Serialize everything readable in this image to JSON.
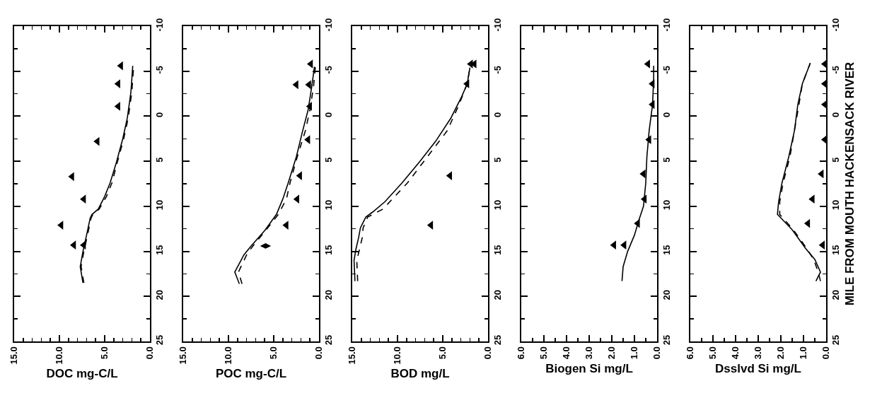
{
  "chart_data": [
    {
      "type": "line",
      "xlabel": "DOC mg-C/L",
      "ylim": [
        25,
        -10
      ],
      "xlim": [
        15,
        0
      ],
      "yticks": [
        25,
        {
          "value": 22.5,
          "label": null
        },
        20,
        {
          "value": 17.5,
          "label": null
        },
        15,
        {
          "value": 12.5,
          "label": null
        },
        10,
        {
          "value": 7.5,
          "label": null
        },
        5,
        {
          "value": 2.5,
          "label": null
        },
        0,
        {
          "value": -2.5,
          "label": null
        },
        -5,
        {
          "value": -7.5,
          "label": null
        },
        -10
      ],
      "xticks": [
        {
          "value": 0,
          "label": "0.0"
        },
        {
          "value": 1,
          "label": null
        },
        {
          "value": 2,
          "label": null
        },
        {
          "value": 3,
          "label": null
        },
        {
          "value": 4,
          "label": null
        },
        {
          "value": 5,
          "label": "5.0"
        },
        {
          "value": 6,
          "label": null
        },
        {
          "value": 7,
          "label": null
        },
        {
          "value": 8,
          "label": null
        },
        {
          "value": 9,
          "label": null
        },
        {
          "value": 10,
          "label": "10.0"
        },
        {
          "value": 11,
          "label": null
        },
        {
          "value": 12,
          "label": null
        },
        {
          "value": 13,
          "label": null
        },
        {
          "value": 14,
          "label": null
        },
        {
          "value": 15,
          "label": "15.0"
        }
      ],
      "series": [
        {
          "type": "line",
          "line_style": "solid",
          "color": "#000000",
          "values": [
            18.5,
            16.7,
            15.0,
            13.2,
            11.3,
            10.9,
            10.3,
            8.9,
            7.4,
            5.1,
            2.5,
            0.2,
            -2.7,
            -5.6
          ],
          "x": [
            7.4,
            7.7,
            7.4,
            7.0,
            6.6,
            6.4,
            5.7,
            5.0,
            4.4,
            3.7,
            3.0,
            2.5,
            2.1,
            1.9
          ]
        },
        {
          "type": "line",
          "line_style": "dashed",
          "color": "#000000",
          "values": [
            18.5,
            16.7,
            15.0,
            13.2,
            11.3,
            10.9,
            10.3,
            8.9,
            7.4,
            5.1,
            2.5,
            0.2,
            -2.7,
            -5.6
          ],
          "x": [
            7.3,
            7.6,
            7.3,
            6.9,
            6.5,
            6.3,
            5.6,
            4.8,
            4.2,
            3.6,
            2.9,
            2.4,
            2.0,
            1.8
          ]
        },
        {
          "type": "scatter",
          "marker": "triangle",
          "color": "#000000",
          "values": [
            14.3,
            14.3,
            12.1,
            9.2,
            6.7,
            2.8,
            -1.1,
            -3.6,
            -5.6
          ],
          "x": [
            8.4,
            7.3,
            9.8,
            7.3,
            8.6,
            5.8,
            3.5,
            3.5,
            3.2
          ]
        }
      ]
    },
    {
      "type": "line",
      "xlabel": "POC mg-C/L",
      "ylim": [
        25,
        -10
      ],
      "xlim": [
        15,
        0
      ],
      "yticks": [
        25,
        {
          "value": 22.5,
          "label": null
        },
        20,
        {
          "value": 17.5,
          "label": null
        },
        15,
        {
          "value": 12.5,
          "label": null
        },
        10,
        {
          "value": 7.5,
          "label": null
        },
        5,
        {
          "value": 2.5,
          "label": null
        },
        0,
        {
          "value": -2.5,
          "label": null
        },
        -5,
        {
          "value": -7.5,
          "label": null
        },
        -10
      ],
      "xticks": [
        {
          "value": 0,
          "label": "0.0"
        },
        {
          "value": 1,
          "label": null
        },
        {
          "value": 2,
          "label": null
        },
        {
          "value": 3,
          "label": null
        },
        {
          "value": 4,
          "label": null
        },
        {
          "value": 5,
          "label": "5.0"
        },
        {
          "value": 6,
          "label": null
        },
        {
          "value": 7,
          "label": null
        },
        {
          "value": 8,
          "label": null
        },
        {
          "value": 9,
          "label": null
        },
        {
          "value": 10,
          "label": "10.0"
        },
        {
          "value": 11,
          "label": null
        },
        {
          "value": 12,
          "label": null
        },
        {
          "value": 13,
          "label": null
        },
        {
          "value": 14,
          "label": null
        },
        {
          "value": 15,
          "label": "15.0"
        }
      ],
      "series": [
        {
          "type": "line",
          "line_style": "solid",
          "color": "#000000",
          "values": [
            18.6,
            17.3,
            15.4,
            14.4,
            12.7,
            10.9,
            9.2,
            7.4,
            4.5,
            1.6,
            -0.7,
            -3.3,
            -5.5
          ],
          "x": [
            8.8,
            9.3,
            8.3,
            7.5,
            6.0,
            4.7,
            4.0,
            3.4,
            2.5,
            1.8,
            1.2,
            0.8,
            0.5
          ]
        },
        {
          "type": "line",
          "line_style": "dashed",
          "color": "#000000",
          "values": [
            18.6,
            17.3,
            15.4,
            14.4,
            12.7,
            10.9,
            9.2,
            7.4,
            4.5,
            1.6,
            -0.7,
            -3.3,
            -5.5
          ],
          "x": [
            8.5,
            8.9,
            8.0,
            7.3,
            5.9,
            4.5,
            3.6,
            3.2,
            2.4,
            1.5,
            1.0,
            0.6,
            0.4
          ]
        },
        {
          "type": "scatter",
          "marker": "triangle",
          "color": "#000000",
          "values": [
            12.1,
            9.2,
            6.6,
            2.6,
            -1.1,
            -3.5,
            -3.5,
            -5.8
          ],
          "x": [
            3.6,
            2.4,
            2.1,
            1.2,
            1.0,
            1.1,
            2.5,
            0.9
          ]
        },
        {
          "type": "scatter",
          "marker": "diamond",
          "color": "#000000",
          "values": [
            14.4
          ],
          "x": [
            5.9
          ]
        }
      ]
    },
    {
      "type": "line",
      "xlabel": "BOD mg/L",
      "ylim": [
        25,
        -10
      ],
      "xlim": [
        15,
        0
      ],
      "yticks": [
        25,
        {
          "value": 22.5,
          "label": null
        },
        20,
        {
          "value": 17.5,
          "label": null
        },
        15,
        {
          "value": 12.5,
          "label": null
        },
        10,
        {
          "value": 7.5,
          "label": null
        },
        5,
        {
          "value": 2.5,
          "label": null
        },
        0,
        {
          "value": -2.5,
          "label": null
        },
        -5,
        {
          "value": -7.5,
          "label": null
        },
        -10
      ],
      "xticks": [
        {
          "value": 0,
          "label": "0.0"
        },
        {
          "value": 1,
          "label": null
        },
        {
          "value": 2,
          "label": null
        },
        {
          "value": 3,
          "label": null
        },
        {
          "value": 4,
          "label": null
        },
        {
          "value": 5,
          "label": "5.0"
        },
        {
          "value": 6,
          "label": null
        },
        {
          "value": 7,
          "label": null
        },
        {
          "value": 8,
          "label": null
        },
        {
          "value": 9,
          "label": null
        },
        {
          "value": 10,
          "label": "10.0"
        },
        {
          "value": 11,
          "label": null
        },
        {
          "value": 12,
          "label": null
        },
        {
          "value": 13,
          "label": null
        },
        {
          "value": 14,
          "label": null
        },
        {
          "value": 15,
          "label": "15.0"
        }
      ],
      "series": [
        {
          "type": "line",
          "line_style": "solid",
          "color": "#000000",
          "values": [
            18.3,
            16.0,
            14.8,
            13.5,
            12.4,
            11.2,
            10.6,
            9.5,
            7.4,
            5.1,
            2.8,
            0.2,
            -2.2,
            -3.6,
            -5.4
          ],
          "x": [
            14.7,
            14.8,
            14.6,
            14.3,
            14.1,
            13.5,
            12.7,
            11.4,
            9.5,
            7.6,
            5.8,
            4.1,
            2.9,
            2.3,
            2.0
          ]
        },
        {
          "type": "line",
          "line_style": "dashed",
          "color": "#000000",
          "values": [
            18.3,
            16.0,
            14.8,
            13.5,
            12.4,
            11.2,
            10.3,
            7.4,
            4.5,
            1.6,
            -1.3,
            -3.6,
            -5.4
          ],
          "x": [
            14.4,
            14.5,
            14.2,
            13.9,
            13.8,
            13.3,
            11.6,
            8.9,
            6.7,
            4.5,
            3.2,
            2.3,
            2.0
          ]
        },
        {
          "type": "scatter",
          "marker": "triangle",
          "color": "#000000",
          "values": [
            12.1,
            6.6,
            -3.6,
            -5.8,
            -5.8
          ],
          "x": [
            6.3,
            4.2,
            2.3,
            1.9,
            1.5
          ]
        }
      ]
    },
    {
      "type": "line",
      "xlabel": "Biogen Si mg/L",
      "ylim": [
        25,
        -10
      ],
      "xlim": [
        6,
        0
      ],
      "yticks": [
        25,
        {
          "value": 22.5,
          "label": null
        },
        20,
        {
          "value": 17.5,
          "label": null
        },
        15,
        {
          "value": 12.5,
          "label": null
        },
        10,
        {
          "value": 7.5,
          "label": null
        },
        5,
        {
          "value": 2.5,
          "label": null
        },
        0,
        {
          "value": -2.5,
          "label": null
        },
        -5,
        {
          "value": -7.5,
          "label": null
        },
        -10
      ],
      "xticks": [
        {
          "value": 0,
          "label": "0.0"
        },
        {
          "value": 0.5,
          "label": null
        },
        {
          "value": 1,
          "label": "1.0"
        },
        {
          "value": 1.5,
          "label": null
        },
        {
          "value": 2,
          "label": "2.0"
        },
        {
          "value": 2.5,
          "label": null
        },
        {
          "value": 3,
          "label": "3.0"
        },
        {
          "value": 3.5,
          "label": null
        },
        {
          "value": 4,
          "label": "4.0"
        },
        {
          "value": 4.5,
          "label": null
        },
        {
          "value": 5,
          "label": "5.0"
        },
        {
          "value": 5.5,
          "label": null
        },
        {
          "value": 6,
          "label": "6.0"
        }
      ],
      "series": [
        {
          "type": "line",
          "line_style": "solid",
          "color": "#000000",
          "values": [
            18.3,
            16.7,
            15.0,
            13.2,
            11.5,
            10.0,
            7.4,
            4.5,
            1.6,
            -1.3,
            -4.2,
            -5.6
          ],
          "x": [
            1.55,
            1.5,
            1.3,
            1.0,
            0.8,
            0.6,
            0.5,
            0.45,
            0.35,
            0.2,
            0.15,
            0.15
          ]
        },
        {
          "type": "scatter",
          "marker": "triangle",
          "color": "#000000",
          "values": [
            14.3,
            14.3,
            11.9,
            9.2,
            6.4,
            2.6,
            -1.3,
            -3.6,
            -5.8
          ],
          "x": [
            1.9,
            1.45,
            0.85,
            0.55,
            0.6,
            0.35,
            0.2,
            0.2,
            0.4
          ]
        }
      ]
    },
    {
      "type": "line",
      "xlabel": "Dsslvd Si mg/L",
      "ylabel": "MILE FROM MOUTH HACKENSACK RIVER",
      "ylim": [
        25,
        -10
      ],
      "xlim": [
        6,
        0
      ],
      "yticks": [
        25,
        {
          "value": 22.5,
          "label": null
        },
        20,
        {
          "value": 17.5,
          "label": null
        },
        15,
        {
          "value": 12.5,
          "label": null
        },
        10,
        {
          "value": 7.5,
          "label": null
        },
        5,
        {
          "value": 2.5,
          "label": null
        },
        0,
        {
          "value": -2.5,
          "label": null
        },
        -5,
        {
          "value": -7.5,
          "label": null
        },
        -10
      ],
      "xticks": [
        {
          "value": 0,
          "label": "0.0"
        },
        {
          "value": 0.5,
          "label": null
        },
        {
          "value": 1,
          "label": "1.0"
        },
        {
          "value": 1.5,
          "label": null
        },
        {
          "value": 2,
          "label": "2.0"
        },
        {
          "value": 2.5,
          "label": null
        },
        {
          "value": 3,
          "label": "3.0"
        },
        {
          "value": 3.5,
          "label": null
        },
        {
          "value": 4,
          "label": "4.0"
        },
        {
          "value": 4.5,
          "label": null
        },
        {
          "value": 5,
          "label": "5.0"
        },
        {
          "value": 5.5,
          "label": null
        },
        {
          "value": 6,
          "label": "6.0"
        }
      ],
      "series": [
        {
          "type": "line",
          "line_style": "solid",
          "color": "#000000",
          "values": [
            18.3,
            17.3,
            15.9,
            14.7,
            12.6,
            10.9,
            9.5,
            7.4,
            4.5,
            1.6,
            -1.3,
            -3.6,
            -5.9
          ],
          "x": [
            0.45,
            0.25,
            0.5,
            0.9,
            1.5,
            2.15,
            2.1,
            1.95,
            1.65,
            1.4,
            1.25,
            1.05,
            0.7
          ]
        },
        {
          "type": "line",
          "line_style": "dashed",
          "color": "#000000",
          "values": [
            18.3,
            17.3,
            15.9,
            14.7,
            12.6,
            10.9,
            9.5,
            7.4,
            4.5,
            1.6,
            -1.3,
            -3.6,
            -5.9
          ],
          "x": [
            0.25,
            0.35,
            0.55,
            0.85,
            1.45,
            2.05,
            2.05,
            1.9,
            1.6,
            1.4,
            1.2,
            1.05,
            0.7
          ]
        },
        {
          "type": "scatter",
          "marker": "triangle",
          "color": "#000000",
          "values": [
            14.3,
            11.9,
            9.2,
            6.4,
            2.6,
            -1.3,
            -3.6,
            -5.8
          ],
          "x": [
            0.15,
            0.8,
            0.6,
            0.2,
            0.05,
            0.05,
            0.05,
            0.05
          ]
        }
      ]
    }
  ]
}
